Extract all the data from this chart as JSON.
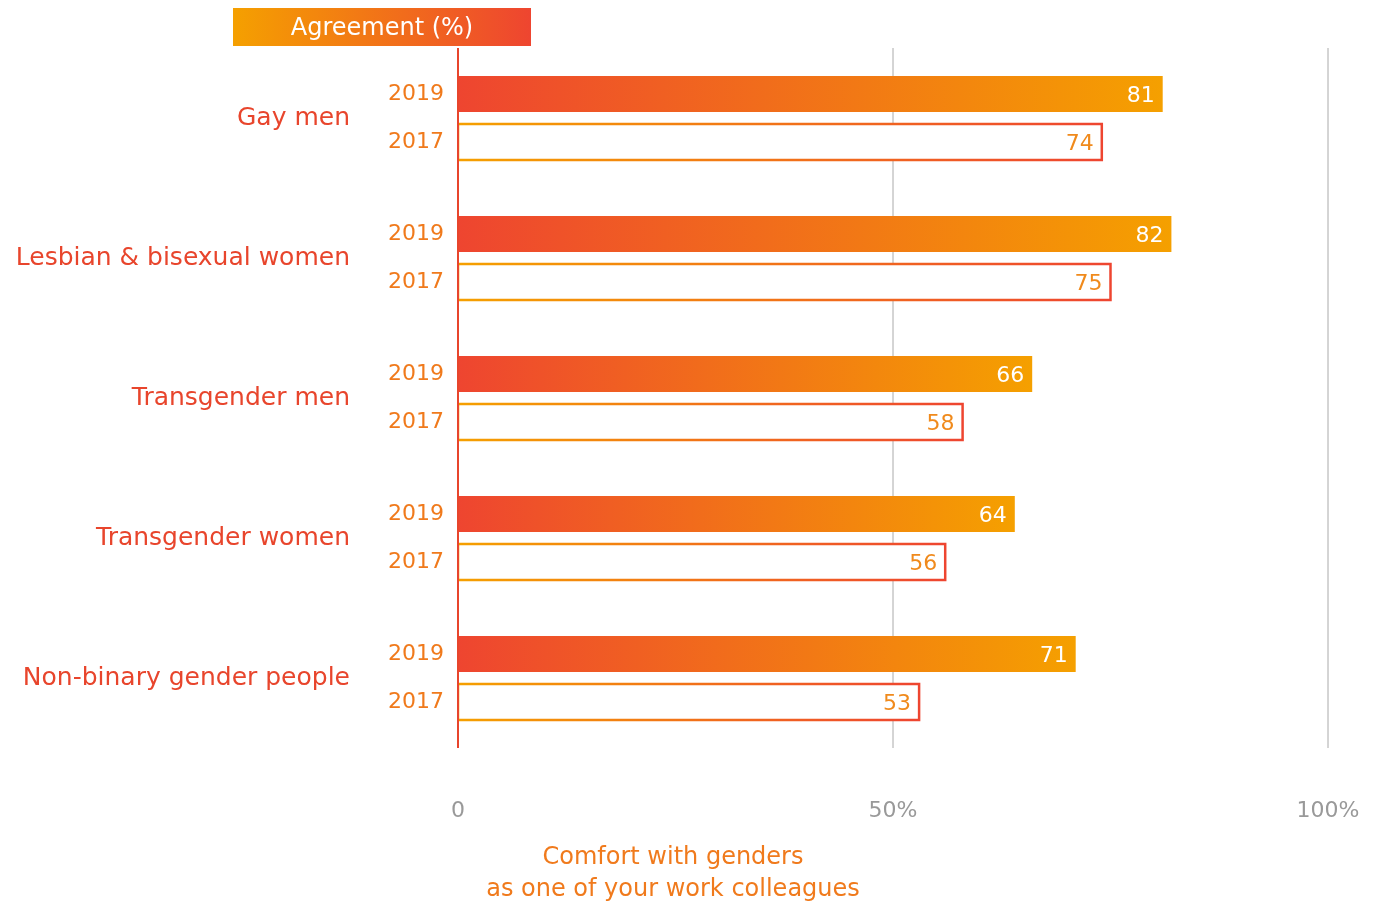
{
  "chart_data": {
    "type": "bar",
    "orientation": "horizontal",
    "title": "Agreement (%)",
    "xlabel": "Comfort with genders\nas one of your work colleagues",
    "categories": [
      "Gay men",
      "Lesbian & bisexual women",
      "Transgender men",
      "Transgender women",
      "Non-binary gender people"
    ],
    "series": [
      {
        "name": "2019",
        "color": "#ee4530",
        "values": [
          81,
          82,
          66,
          64,
          71
        ]
      },
      {
        "name": "2017",
        "color": "#f5a000",
        "values": [
          74,
          75,
          58,
          56,
          53
        ]
      }
    ],
    "xlim": [
      0,
      100
    ],
    "xticks": [
      0,
      {
        "value": 50,
        "label": "50%"
      },
      {
        "value": 100,
        "label": "100%"
      }
    ],
    "grid": "x",
    "legend": false,
    "data_labels": true
  }
}
